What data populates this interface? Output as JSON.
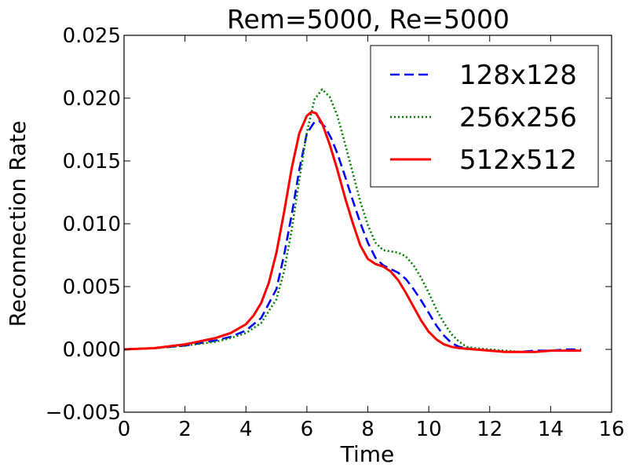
{
  "chart_data": {
    "type": "line",
    "title": "Rem=5000, Re=5000",
    "xlabel": "Time",
    "ylabel": "Reconnection Rate",
    "xlim": [
      0,
      16
    ],
    "ylim": [
      -0.005,
      0.025
    ],
    "xticks": [
      0,
      2,
      4,
      6,
      8,
      10,
      12,
      14,
      16
    ],
    "xtick_labels": [
      "0",
      "2",
      "4",
      "6",
      "8",
      "10",
      "12",
      "14",
      "16"
    ],
    "yticks": [
      -0.005,
      0.0,
      0.005,
      0.01,
      0.015,
      0.02,
      0.025
    ],
    "ytick_labels": [
      "−0.005",
      "0.000",
      "0.005",
      "0.010",
      "0.015",
      "0.020",
      "0.025"
    ],
    "grid": false,
    "legend_position": "top-right",
    "series": [
      {
        "name": "128x128",
        "color": "#0000ff",
        "style": "dashed",
        "x": [
          0,
          1,
          2,
          3,
          3.5,
          4,
          4.5,
          5,
          5.25,
          5.5,
          5.75,
          6,
          6.25,
          6.4,
          6.6,
          6.8,
          7,
          7.25,
          7.5,
          7.75,
          8,
          8.25,
          8.5,
          8.75,
          9,
          9.25,
          9.5,
          9.75,
          10,
          10.25,
          10.5,
          10.75,
          11,
          11.25,
          11.5,
          12,
          12.5,
          13,
          13.5,
          14,
          14.5,
          15
        ],
        "y": [
          0.0,
          0.0001,
          0.0003,
          0.0007,
          0.001,
          0.0015,
          0.0025,
          0.0048,
          0.0075,
          0.0107,
          0.0143,
          0.0172,
          0.0181,
          0.0182,
          0.0177,
          0.0168,
          0.0156,
          0.0138,
          0.0119,
          0.0101,
          0.0085,
          0.0073,
          0.0067,
          0.0064,
          0.0061,
          0.0056,
          0.0048,
          0.0039,
          0.0029,
          0.0019,
          0.0011,
          0.0005,
          0.0002,
          0.0001,
          0.0,
          -0.0001,
          -0.0002,
          -0.0002,
          -0.0001,
          -0.0001,
          0.0,
          0.0
        ]
      },
      {
        "name": "256x256",
        "color": "#008000",
        "style": "dotted",
        "x": [
          0,
          1,
          2,
          3,
          3.5,
          4,
          4.5,
          5,
          5.25,
          5.5,
          5.75,
          6,
          6.25,
          6.5,
          6.75,
          7,
          7.25,
          7.5,
          7.75,
          8,
          8.25,
          8.5,
          8.75,
          9,
          9.25,
          9.5,
          9.75,
          10,
          10.25,
          10.5,
          10.75,
          11,
          11.25,
          11.5,
          12,
          12.5,
          13,
          13.5,
          14,
          14.5,
          15
        ],
        "y": [
          0.0,
          0.0001,
          0.0003,
          0.0006,
          0.0009,
          0.0013,
          0.0021,
          0.004,
          0.0062,
          0.0095,
          0.0135,
          0.0173,
          0.0199,
          0.0207,
          0.0201,
          0.0186,
          0.0164,
          0.0141,
          0.0118,
          0.0099,
          0.0085,
          0.0079,
          0.0078,
          0.0077,
          0.0074,
          0.0067,
          0.0057,
          0.0045,
          0.0032,
          0.0021,
          0.0012,
          0.0006,
          0.0002,
          0.0001,
          0.0,
          -0.0001,
          -0.0002,
          -0.0002,
          -0.0001,
          -0.0001,
          -0.0001
        ]
      },
      {
        "name": "512x512",
        "color": "#ff0000",
        "style": "solid",
        "x": [
          0,
          1,
          2,
          3,
          3.5,
          4,
          4.25,
          4.5,
          4.75,
          5,
          5.25,
          5.5,
          5.75,
          6,
          6.15,
          6.3,
          6.5,
          6.75,
          7,
          7.25,
          7.5,
          7.75,
          8,
          8.25,
          8.5,
          8.75,
          9,
          9.25,
          9.5,
          9.75,
          10,
          10.25,
          10.5,
          10.75,
          11,
          11.5,
          12,
          12.5,
          13,
          13.5,
          14,
          14.5,
          15
        ],
        "y": [
          0.0,
          0.0001,
          0.0004,
          0.0009,
          0.0013,
          0.002,
          0.0027,
          0.0037,
          0.0053,
          0.0077,
          0.0109,
          0.0144,
          0.0172,
          0.0186,
          0.0189,
          0.0188,
          0.018,
          0.0163,
          0.0143,
          0.0121,
          0.0101,
          0.0083,
          0.0072,
          0.0068,
          0.0066,
          0.0062,
          0.0055,
          0.0045,
          0.0034,
          0.0023,
          0.0014,
          0.0008,
          0.0004,
          0.0002,
          0.0001,
          0.0,
          -0.0001,
          -0.0002,
          -0.0002,
          -0.0002,
          -0.0001,
          -0.0001,
          -0.0001
        ]
      }
    ]
  }
}
